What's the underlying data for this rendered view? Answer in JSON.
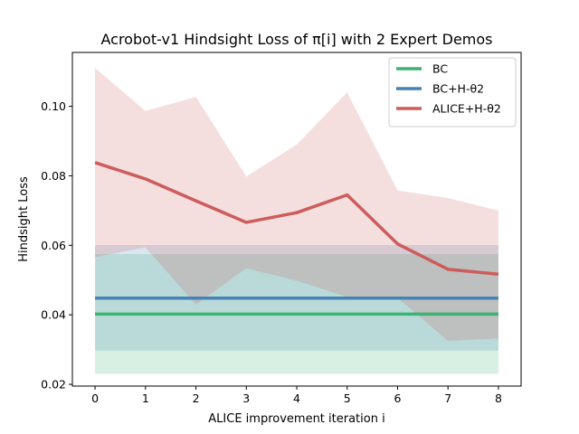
{
  "chart_data": {
    "type": "line",
    "title": "Acrobot-v1 Hindsight Loss of π[i] with 2 Expert Demos",
    "xlabel": "ALICE improvement iteration i",
    "ylabel": "Hindsight Loss",
    "x": [
      0,
      1,
      2,
      3,
      4,
      5,
      6,
      7,
      8
    ],
    "xlim": [
      -0.45,
      8.45
    ],
    "ylim": [
      0.0195,
      0.1155
    ],
    "xticks": [
      "0",
      "1",
      "2",
      "3",
      "4",
      "5",
      "6",
      "7",
      "8"
    ],
    "yticks": [
      "0.02",
      "0.04",
      "0.06",
      "0.08",
      "0.10"
    ],
    "ytick_values": [
      0.02,
      0.04,
      0.06,
      0.08,
      0.1
    ],
    "grid": false,
    "legend_position": "top-right",
    "series": [
      {
        "name": "BC",
        "color": "#3cb371",
        "values": [
          0.0402,
          0.0402,
          0.0402,
          0.0402,
          0.0402,
          0.0402,
          0.0402,
          0.0402,
          0.0402
        ],
        "band_low": [
          0.023,
          0.023,
          0.023,
          0.023,
          0.023,
          0.023,
          0.023,
          0.023,
          0.023
        ],
        "band_high": [
          0.0575,
          0.0575,
          0.0575,
          0.0575,
          0.0575,
          0.0575,
          0.0575,
          0.0575,
          0.0575
        ]
      },
      {
        "name": "BC+H-θ2",
        "color": "#4682b4",
        "values": [
          0.0448,
          0.0448,
          0.0448,
          0.0448,
          0.0448,
          0.0448,
          0.0448,
          0.0448,
          0.0448
        ],
        "band_low": [
          0.0297,
          0.0297,
          0.0297,
          0.0297,
          0.0297,
          0.0297,
          0.0297,
          0.0297,
          0.0297
        ],
        "band_high": [
          0.0601,
          0.0601,
          0.0601,
          0.0601,
          0.0601,
          0.0601,
          0.0601,
          0.0601,
          0.0601
        ]
      },
      {
        "name": "ALICE+H-θ2",
        "color": "#cd5c5c",
        "values": [
          0.0838,
          0.0791,
          0.0728,
          0.0666,
          0.0694,
          0.0745,
          0.0604,
          0.0531,
          0.0517
        ],
        "band_low": [
          0.0566,
          0.0594,
          0.0429,
          0.0534,
          0.0498,
          0.0451,
          0.0449,
          0.0325,
          0.0332
        ],
        "band_high": [
          0.111,
          0.0987,
          0.1027,
          0.0798,
          0.089,
          0.104,
          0.0758,
          0.0736,
          0.07
        ]
      }
    ]
  }
}
